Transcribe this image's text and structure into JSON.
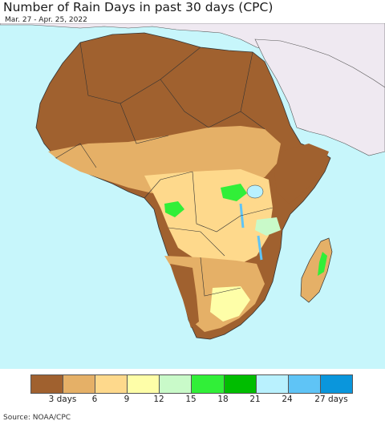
{
  "title": "Number of Rain Days in past 30 days (CPC)",
  "date_range": "Mar. 27 - Apr. 25, 2022",
  "source": "Source: NOAA/CPC",
  "legend": {
    "colors": [
      "#a0612f",
      "#e5b067",
      "#fed98c",
      "#fefea8",
      "#c9fac9",
      "#31ef38",
      "#00bd00",
      "#b9f1fe",
      "#5fc4f6",
      "#0a96dc"
    ],
    "ticks": [
      "3 days",
      "6",
      "9",
      "12",
      "15",
      "18",
      "21",
      "24",
      "27 days"
    ]
  },
  "map": {
    "ocean_color": "#c7f6fb",
    "non_africa_land_color": "#efe9f1"
  }
}
